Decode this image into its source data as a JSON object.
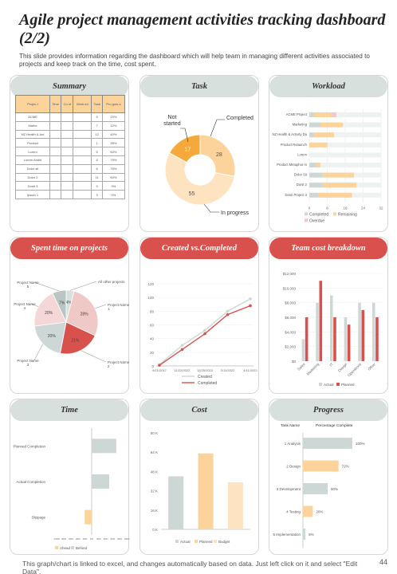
{
  "page": {
    "title": "Agile project management activities tracking dashboard (2/2)",
    "subtitle": "This slide provides information regarding the dashboard which will help team in managing different activities associated to projects and keep track on the time, cost spent.",
    "footer": "This graph/chart is linked to excel, and changes automatically based on data. Just left click on it and select \"Edit Data\".",
    "page_number": "44"
  },
  "colors": {
    "red": "#d9514d",
    "orange": "#fbd39b",
    "orange_dark": "#f6a93b",
    "gray": "#cdd8d6",
    "pink": "#f0c9c7"
  },
  "summary": {
    "title": "Summary",
    "headers": [
      "Projec t",
      "Time",
      "Co st",
      "Work ed",
      "Task",
      "Pro gres s"
    ],
    "rows": [
      [
        "ACME",
        "",
        "",
        "",
        "5",
        "20%"
      ],
      [
        "Marke",
        "",
        "",
        "",
        "7",
        "12%"
      ],
      [
        "NZ Health & Act",
        "",
        "",
        "",
        "12",
        "40%"
      ],
      [
        "Product",
        "",
        "",
        "",
        "1",
        "35%"
      ],
      [
        "Lorem",
        "",
        "",
        "",
        "5",
        "60%"
      ],
      [
        "Lorem Ambit",
        "",
        "",
        "",
        "8",
        "75%"
      ],
      [
        "Dolor sit",
        "",
        "",
        "",
        "6",
        "76%"
      ],
      [
        "Dolor 2",
        "",
        "",
        "",
        "11",
        "60%"
      ],
      [
        "Donit 3",
        "",
        "",
        "",
        "9",
        "9%"
      ],
      [
        "Ipsum 1",
        "",
        "",
        "",
        "3",
        "0%"
      ]
    ]
  },
  "task": {
    "title": "Task",
    "labels": [
      "Not started",
      "Completed",
      "In progress"
    ],
    "chart_data": {
      "type": "pie",
      "categories": [
        "Not started",
        "Completed",
        "In progress"
      ],
      "values": [
        17,
        28,
        55
      ]
    }
  },
  "workload": {
    "title": "Workload",
    "chart_data": {
      "type": "bar",
      "categories": [
        "ACME Project",
        "Marketing",
        "NZ Health & Activity Da",
        "Product Relaunch",
        "Lorem",
        "Product Metaphor m",
        "Dolor Sit",
        "Donit 2",
        "Donit Project 3"
      ],
      "series": [
        {
          "name": "Completed",
          "values": [
            2,
            5,
            2,
            0,
            0,
            3,
            6,
            6,
            4
          ]
        },
        {
          "name": "Remaining",
          "values": [
            8,
            10,
            9,
            8,
            0,
            2,
            14,
            15,
            15
          ]
        },
        {
          "name": "Overdue",
          "values": [
            2,
            0,
            0,
            0,
            0,
            0,
            0,
            0,
            0
          ]
        }
      ],
      "xticks": [
        "0",
        "8",
        "16",
        "24",
        "32"
      ],
      "xlim": [
        0,
        32
      ],
      "legend": [
        "Completed",
        "Remaining",
        "Overdue"
      ]
    }
  },
  "spent": {
    "title": "Spent time on projects",
    "chart_data": {
      "type": "pie",
      "categories": [
        "All other projects",
        "Project Name 1",
        "Project Name 2",
        "Project Name 3",
        "Project Name 4",
        "Project Name 5"
      ],
      "values": [
        4,
        28,
        21,
        20,
        20,
        7
      ],
      "labels": [
        "4%",
        "28%",
        "21%",
        "20%",
        "20%",
        "7%"
      ]
    }
  },
  "created": {
    "title": "Created vs.Completed",
    "chart_data": {
      "type": "line",
      "categories": [
        "9/21/2017",
        "11/22/2022",
        "12/25/2022",
        "2/11/2022",
        "4/11/2022"
      ],
      "series": [
        {
          "name": "Created",
          "values": [
            2,
            30,
            52,
            80,
            98
          ]
        },
        {
          "name": "Completed",
          "values": [
            1,
            24,
            47,
            75,
            88
          ]
        }
      ],
      "yticks": [
        "0",
        "20",
        "40",
        "60",
        "80",
        "100",
        "120"
      ],
      "ylim": [
        0,
        120
      ],
      "legend": [
        "Created",
        "Completed"
      ]
    }
  },
  "team": {
    "title": "Team cost breakdown",
    "chart_data": {
      "type": "bar",
      "categories": [
        "Sales",
        "Marketing",
        "IT",
        "Design",
        "Operations",
        "Other"
      ],
      "series": [
        {
          "name": "Actual",
          "values": [
            3000,
            8000,
            9000,
            6000,
            8000,
            8000
          ]
        },
        {
          "name": "Planned",
          "values": [
            6000,
            11000,
            6000,
            5000,
            7000,
            6000
          ]
        }
      ],
      "yticks": [
        "$0",
        "$2,000",
        "$4,000",
        "$6,000",
        "$8,000",
        "$10,000",
        "$12,000"
      ],
      "ylim": [
        0,
        12000
      ],
      "legend": [
        "Actual",
        "Planned"
      ]
    }
  },
  "time": {
    "title": "Time",
    "chart_data": {
      "type": "bar",
      "categories": [
        "Planned Completion",
        "Actual Completion",
        "Slippage"
      ],
      "series": [
        {
          "name": "Ahead",
          "values": [
            0,
            0,
            -20
          ]
        },
        {
          "name": "Behind",
          "values": [
            70,
            50,
            0
          ]
        }
      ],
      "xticks": [
        "-100%",
        "-80%",
        "-60%",
        "-40%",
        "-20%",
        "0%",
        "20%",
        "40%",
        "60%",
        "80%",
        "100%"
      ],
      "xlim": [
        -100,
        100
      ],
      "legend": [
        "Ahead",
        "Behind"
      ]
    }
  },
  "cost": {
    "title": "Cost",
    "chart_data": {
      "type": "bar",
      "categories": [
        "Actual",
        "Planned",
        "Budget"
      ],
      "values": [
        44000,
        63000,
        39000
      ],
      "yticks": [
        "0 K",
        "16 K",
        "32 K",
        "48 K",
        "64 K",
        "80 K"
      ],
      "ylim": [
        0,
        80000
      ],
      "legend": [
        "Actual",
        "Planned",
        "Budget"
      ]
    }
  },
  "progress": {
    "title": "Progress",
    "col_task": "Task Name",
    "col_pct": "Percentage Complete",
    "chart_data": {
      "type": "bar",
      "categories": [
        "1 Analysis",
        "2 Design",
        "3 Development",
        "4 Testing",
        "5 Implementation"
      ],
      "values": [
        100,
        72,
        50,
        20,
        5
      ],
      "labels": [
        "100%",
        "72%",
        "50%",
        "20%",
        "5%"
      ]
    }
  }
}
